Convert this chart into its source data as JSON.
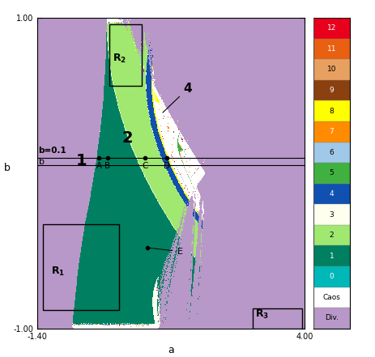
{
  "xlim": [
    -1.4,
    4.0
  ],
  "ylim": [
    -1.0,
    1.0
  ],
  "xlabel": "a",
  "ylabel": "b",
  "figsize": [
    4.64,
    4.41
  ],
  "dpi": 100,
  "colorbar_labels": [
    "12",
    "11",
    "10",
    "9",
    "8",
    "7",
    "6",
    "5",
    "4",
    "3",
    "2",
    "1",
    "0",
    "Caos",
    "Div."
  ],
  "colorbar_colors": [
    "#e8001c",
    "#e86010",
    "#e8a060",
    "#8b4010",
    "#ffff00",
    "#ff8c00",
    "#a0c8e8",
    "#40b040",
    "#1050b0",
    "#fffff0",
    "#a0e870",
    "#008060",
    "#00b8b8",
    "#ffffff",
    "#b898c8"
  ],
  "bg_color": "#b898c8",
  "period1_color": "#008060",
  "period2_color": "#a0e870",
  "period3_color": "#fffff0",
  "period4_color": "#1050b0",
  "period5_color": "#40b040",
  "period6_color": "#a0c8e8",
  "period7_color": "#ff8c00",
  "period8_color": "#ffff00",
  "period9_color": "#8b4010",
  "period10_color": "#e8a060",
  "period11_color": "#e86010",
  "period12_color": "#e8001c",
  "period0_color": "#00b8b8",
  "chaos_color": "#ffffff"
}
